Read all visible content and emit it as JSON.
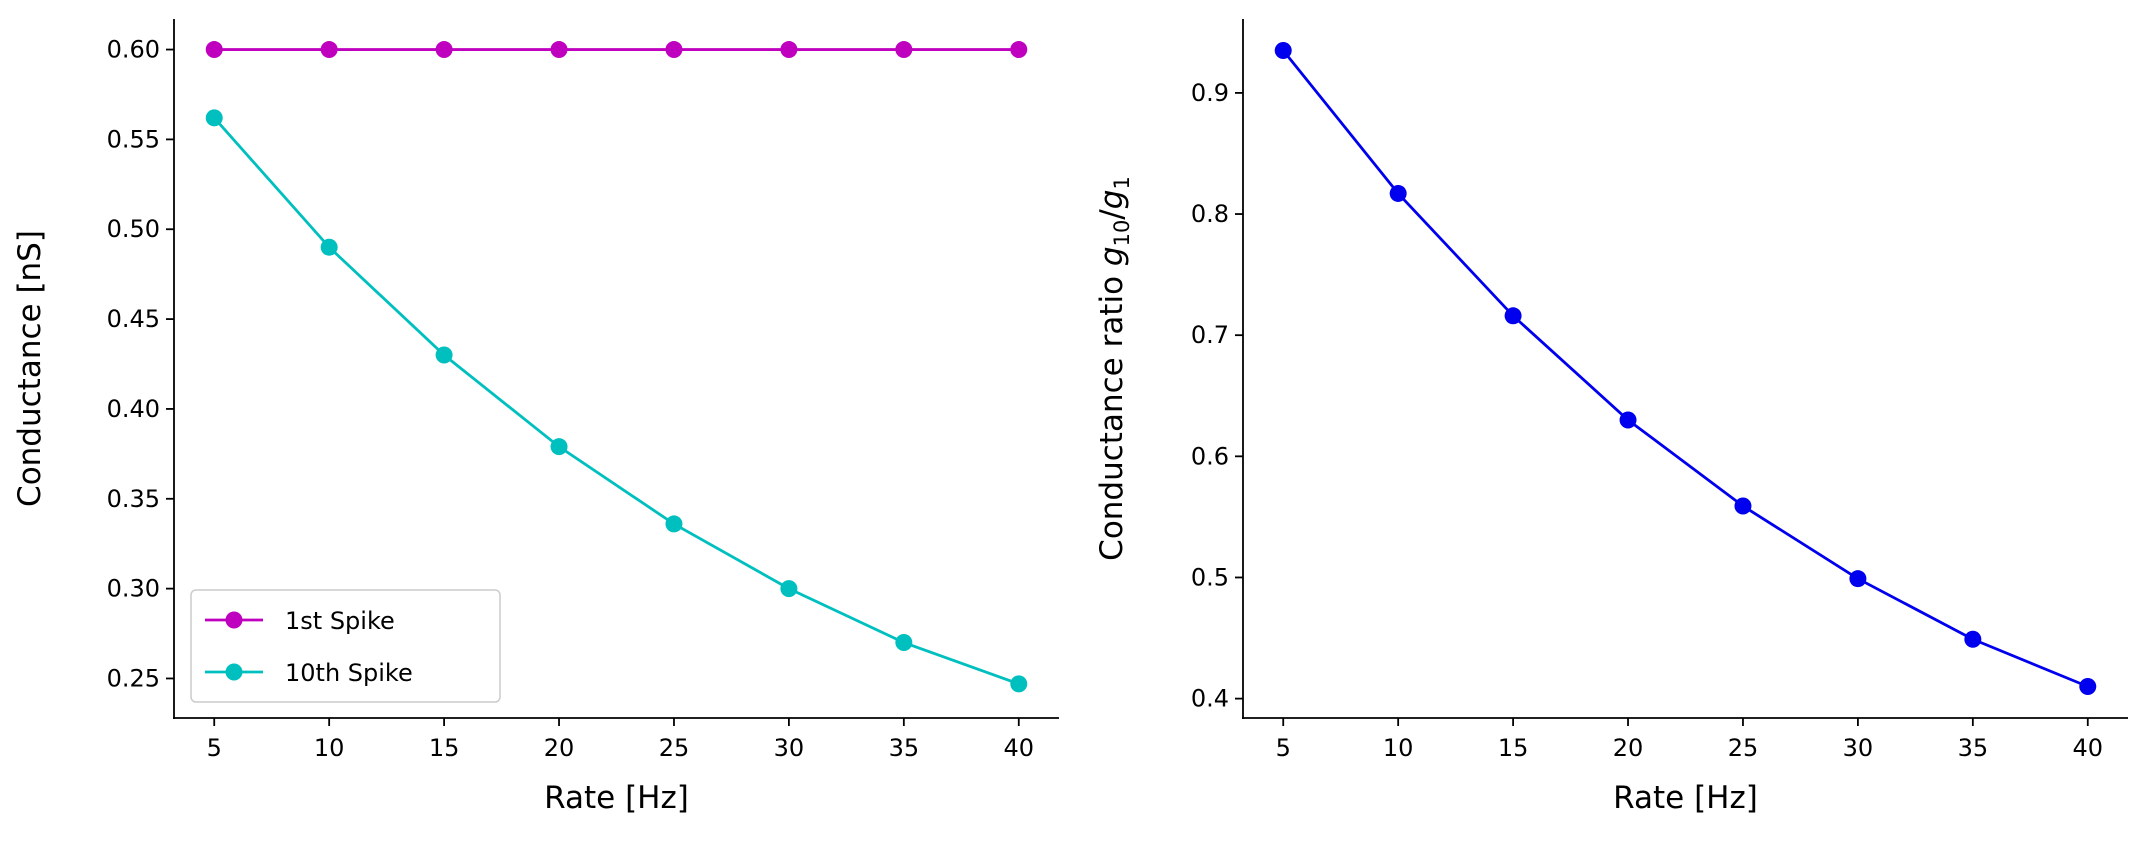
{
  "chart_data": [
    {
      "type": "line",
      "xlabel": "Rate [Hz]",
      "ylabel": "Conductance [nS]",
      "x": [
        5,
        10,
        15,
        20,
        25,
        30,
        35,
        40
      ],
      "xticks": [
        "5",
        "10",
        "15",
        "20",
        "25",
        "30",
        "35",
        "40"
      ],
      "yticks": [
        "0.25",
        "0.30",
        "0.35",
        "0.40",
        "0.45",
        "0.50",
        "0.55",
        "0.60"
      ],
      "ylim": [
        0.228,
        0.617
      ],
      "xlim": [
        3.25,
        41.75
      ],
      "grid": false,
      "legend_position": "lower-left",
      "series": [
        {
          "name": "1st Spike",
          "color": "#bf00bf",
          "marker": "circle",
          "values": [
            0.6,
            0.6,
            0.6,
            0.6,
            0.6,
            0.6,
            0.6,
            0.6
          ]
        },
        {
          "name": "10th Spike",
          "color": "#00bfbf",
          "marker": "circle",
          "values": [
            0.562,
            0.49,
            0.43,
            0.379,
            0.336,
            0.3,
            0.27,
            0.247
          ]
        }
      ]
    },
    {
      "type": "line",
      "xlabel": "Rate [Hz]",
      "ylabel": "Conductance ratio g10/g1",
      "ylabel_parts": {
        "prefix": "Conductance ratio ",
        "g": "g",
        "sub_num": "10",
        "slash": "/",
        "g2": "g",
        "sub_den": "1"
      },
      "x": [
        5,
        10,
        15,
        20,
        25,
        30,
        35,
        40
      ],
      "xticks": [
        "5",
        "10",
        "15",
        "20",
        "25",
        "30",
        "35",
        "40"
      ],
      "yticks": [
        "0.4",
        "0.5",
        "0.6",
        "0.7",
        "0.8",
        "0.9"
      ],
      "ylim": [
        0.384,
        0.961
      ],
      "xlim": [
        3.25,
        41.75
      ],
      "grid": false,
      "series": [
        {
          "color": "#0000ee",
          "marker": "circle",
          "values": [
            0.935,
            0.817,
            0.716,
            0.63,
            0.559,
            0.499,
            0.449,
            0.41
          ]
        }
      ]
    }
  ]
}
